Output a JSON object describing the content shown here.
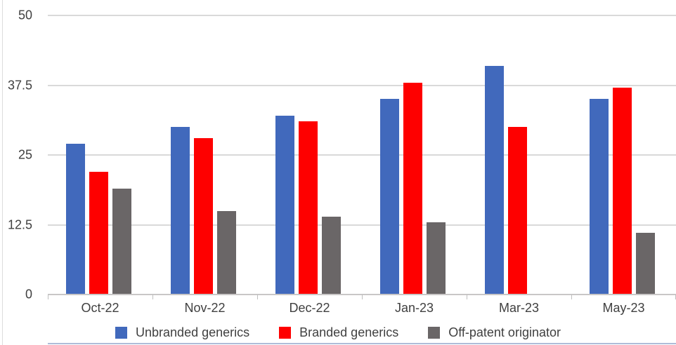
{
  "chart_data": {
    "type": "bar",
    "title": "",
    "xlabel": "",
    "ylabel": "",
    "categories": [
      "Oct-22",
      "Nov-22",
      "Dec-22",
      "Jan-23",
      "Mar-23",
      "May-23"
    ],
    "series": [
      {
        "name": "Unbranded generics",
        "color": "#4169BC",
        "values": [
          27,
          30,
          32,
          35,
          41,
          35
        ]
      },
      {
        "name": "Branded generics",
        "color": "#FE0000",
        "values": [
          22,
          28,
          31,
          38,
          30,
          37
        ]
      },
      {
        "name": "Off-patent originator",
        "color": "#6A6667",
        "values": [
          19,
          15,
          14,
          13,
          null,
          11
        ]
      }
    ],
    "ylim": [
      0,
      50
    ],
    "yticks": [
      0,
      12.5,
      25,
      37.5,
      50
    ],
    "grid": true,
    "legend_position": "bottom"
  },
  "colors": {
    "gridline": "#d9d9d9",
    "axis_line": "#c9c7c7",
    "axis_text": "#404040",
    "bottom_border": "#aebcd8"
  }
}
